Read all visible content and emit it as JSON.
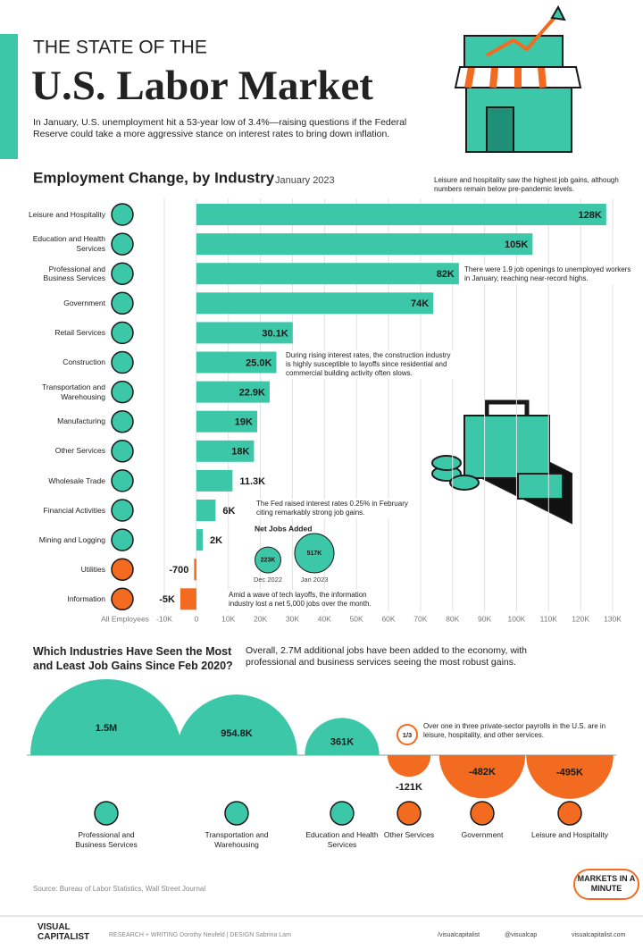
{
  "header": {
    "kicker": "THE STATE OF THE",
    "title": "U.S. Labor Market",
    "intro": "In January, U.S. unemployment hit a 53-year low of 3.4%—raising questions if the Federal Reserve could take a more aggressive stance on interest rates to bring down inflation."
  },
  "chart_data": [
    {
      "type": "bar",
      "orientation": "horizontal",
      "title": "Employment Change, by Industry",
      "subtitle": "January 2023",
      "x_label": "All Employees",
      "categories": [
        "Leisure and Hospitality",
        "Education and Health Services",
        "Professional and Business Services",
        "Government",
        "Retail Services",
        "Construction",
        "Transportation and Warehousing",
        "Manufacturing",
        "Other Services",
        "Wholesale Trade",
        "Financial Activities",
        "Mining and Logging",
        "Utilities",
        "Information"
      ],
      "values": [
        128000,
        105000,
        82000,
        74000,
        30100,
        25000,
        22900,
        19000,
        18000,
        11300,
        6000,
        2000,
        -700,
        -5000
      ],
      "value_labels": [
        "128K",
        "105K",
        "82K",
        "74K",
        "30.1K",
        "25.0K",
        "22.9K",
        "19K",
        "18K",
        "11.3K",
        "6K",
        "2K",
        "-700",
        "-5K"
      ],
      "color": "#3cc8a8",
      "negative_color": "#f26b21",
      "xlim": [
        -10000,
        130000
      ],
      "xticks": [
        {
          "value": -10000,
          "label": "-10K"
        },
        0,
        {
          "value": 10000,
          "label": "10K"
        },
        {
          "value": 20000,
          "label": "20K"
        },
        {
          "value": 30000,
          "label": "30K"
        },
        {
          "value": 40000,
          "label": "40K"
        },
        {
          "value": 50000,
          "label": "50K"
        },
        {
          "value": 60000,
          "label": "60K"
        },
        {
          "value": 70000,
          "label": "70K"
        },
        {
          "value": 80000,
          "label": "80K"
        },
        {
          "value": 90000,
          "label": "90K"
        },
        {
          "value": 100000,
          "label": "100K"
        },
        {
          "value": 110000,
          "label": "110K"
        },
        {
          "value": 120000,
          "label": "120K"
        },
        {
          "value": 130000,
          "label": "130K"
        }
      ],
      "grid": true,
      "annotations": [
        "Leisure and hospitality saw the highest job gains, although numbers remain below pre-pandemic levels.",
        "There were 1.9 job openings to unemployed workers in January, reaching near-record highs.",
        "During rising interest rates, the construction industry is highly susceptible to layoffs since residential and commercial building activity often slows.",
        "The Fed raised interest rates 0.25% in February citing remarkably strong job gains.",
        "Amid a wave of tech layoffs, the information industry lost a net 5,000 jobs over the month."
      ]
    },
    {
      "type": "bubble",
      "title": "Net Jobs Added",
      "categories": [
        "Dec 2022",
        "Jan 2023"
      ],
      "values": [
        223000,
        517000
      ],
      "value_labels": [
        "223K",
        "517K"
      ],
      "color": "#3cc8a8"
    },
    {
      "type": "semicircle",
      "title": "Which Industries Have Seen the Most and Least Job Gains Since Feb 2020?",
      "subtitle": "Overall, 2.7M additional jobs have been added to the economy, with professional and business services seeing the most robust gains.",
      "categories": [
        "Professional and Business Services",
        "Transportation and Warehousing",
        "Education and Health Services",
        "Other Services",
        "Government",
        "Leisure and Hospitality"
      ],
      "values": [
        1500000,
        954800,
        361000,
        -121000,
        -482000,
        -495000
      ],
      "value_labels": [
        "1.5M",
        "954.8K",
        "361K",
        "-121K",
        "-482K",
        "-495K"
      ],
      "color": "#3cc8a8",
      "negative_color": "#f26b21",
      "annotation": {
        "icon": "1/3",
        "text": "Over one in three private-sector payrolls in the U.S. are in leisure, hospitality, and other services."
      }
    }
  ],
  "footer": {
    "source": "Source: Bureau of Labor Statistics, Wall Street Journal",
    "badge": "MARKETS IN A MINUTE",
    "brand": "VISUAL CAPITALIST",
    "credits": "RESEARCH + WRITING Dorothy Neufeld | DESIGN Sabrina Lam",
    "social": [
      "/visualcapitalist",
      "@visualcap",
      "visualcapitalist.com"
    ]
  }
}
